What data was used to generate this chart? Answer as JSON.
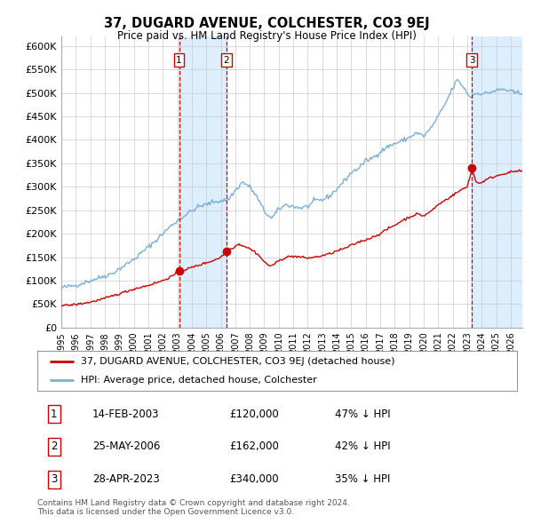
{
  "title": "37, DUGARD AVENUE, COLCHESTER, CO3 9EJ",
  "subtitle": "Price paid vs. HM Land Registry's House Price Index (HPI)",
  "ylim": [
    0,
    620000
  ],
  "yticks": [
    0,
    50000,
    100000,
    150000,
    200000,
    250000,
    300000,
    350000,
    400000,
    450000,
    500000,
    550000,
    600000
  ],
  "ytick_labels": [
    "£0",
    "£50K",
    "£100K",
    "£150K",
    "£200K",
    "£250K",
    "£300K",
    "£350K",
    "£400K",
    "£450K",
    "£500K",
    "£550K",
    "£600K"
  ],
  "xlim_start": 1995.0,
  "xlim_end": 2026.8,
  "sale_dates": [
    2003.12,
    2006.4,
    2023.33
  ],
  "sale_prices": [
    120000,
    162000,
    340000
  ],
  "sale_labels": [
    "1",
    "2",
    "3"
  ],
  "hpi_line_color": "#7bafd4",
  "price_line_color": "#cc0000",
  "sale_marker_color": "#cc0000",
  "shade_color": "#ddeeff",
  "vline_color": "#cc0000",
  "legend_entries": [
    "37, DUGARD AVENUE, COLCHESTER, CO3 9EJ (detached house)",
    "HPI: Average price, detached house, Colchester"
  ],
  "table_rows": [
    {
      "label": "1",
      "date": "14-FEB-2003",
      "price": "£120,000",
      "hpi": "47% ↓ HPI"
    },
    {
      "label": "2",
      "date": "25-MAY-2006",
      "price": "£162,000",
      "hpi": "42% ↓ HPI"
    },
    {
      "label": "3",
      "date": "28-APR-2023",
      "price": "£340,000",
      "hpi": "35% ↓ HPI"
    }
  ],
  "footnote": "Contains HM Land Registry data © Crown copyright and database right 2024.\nThis data is licensed under the Open Government Licence v3.0.",
  "background_color": "#ffffff",
  "plot_bg_color": "#ffffff",
  "grid_color": "#cccccc"
}
